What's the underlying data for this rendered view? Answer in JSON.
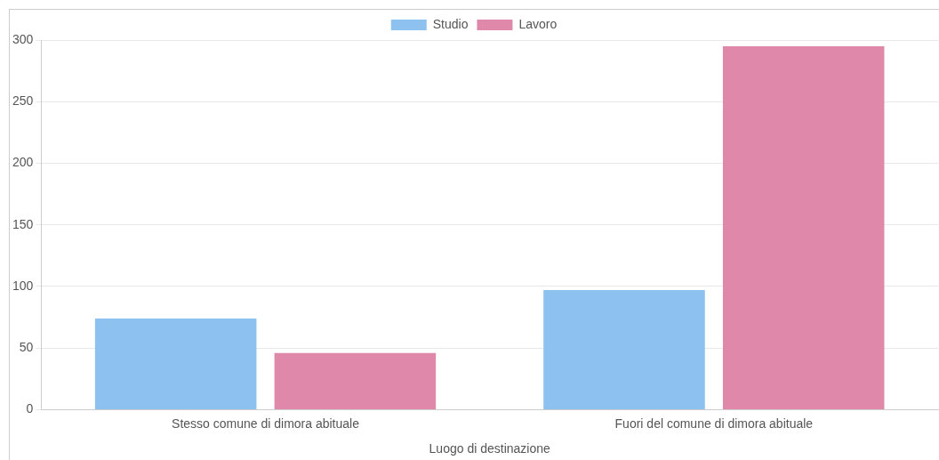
{
  "chart_data": {
    "type": "bar",
    "xlabel": "Luogo di destinazione",
    "categories": [
      "Stesso comune di dimora abituale",
      "Fuori del comune di dimora abituale"
    ],
    "series": [
      {
        "name": "Studio",
        "color": "#8dc1f0",
        "values": [
          74,
          97
        ]
      },
      {
        "name": "Lavoro",
        "color": "#e088aa",
        "values": [
          46,
          295
        ]
      }
    ],
    "ylim": [
      0,
      300
    ],
    "yticks": [
      0,
      50,
      100,
      150,
      200,
      250,
      300
    ],
    "grid": "y",
    "legend": "top"
  }
}
